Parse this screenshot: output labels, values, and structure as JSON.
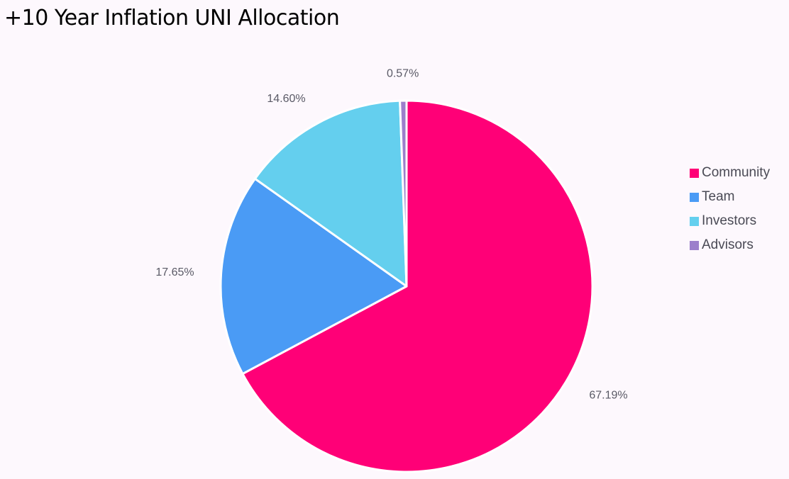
{
  "chart_data": {
    "type": "pie",
    "title": "+10 Year Inflation UNI Allocation",
    "categories": [
      "Community",
      "Team",
      "Investors",
      "Advisors"
    ],
    "values": [
      67.19,
      17.65,
      14.6,
      0.57
    ],
    "labels": [
      "67.19%",
      "17.65%",
      "14.60%",
      "0.57%"
    ],
    "colors": [
      "#FF0077",
      "#4A9BF5",
      "#64CFEE",
      "#9C7FCB"
    ],
    "legend_position": "right",
    "start_angle": "top",
    "direction": "clockwise"
  }
}
